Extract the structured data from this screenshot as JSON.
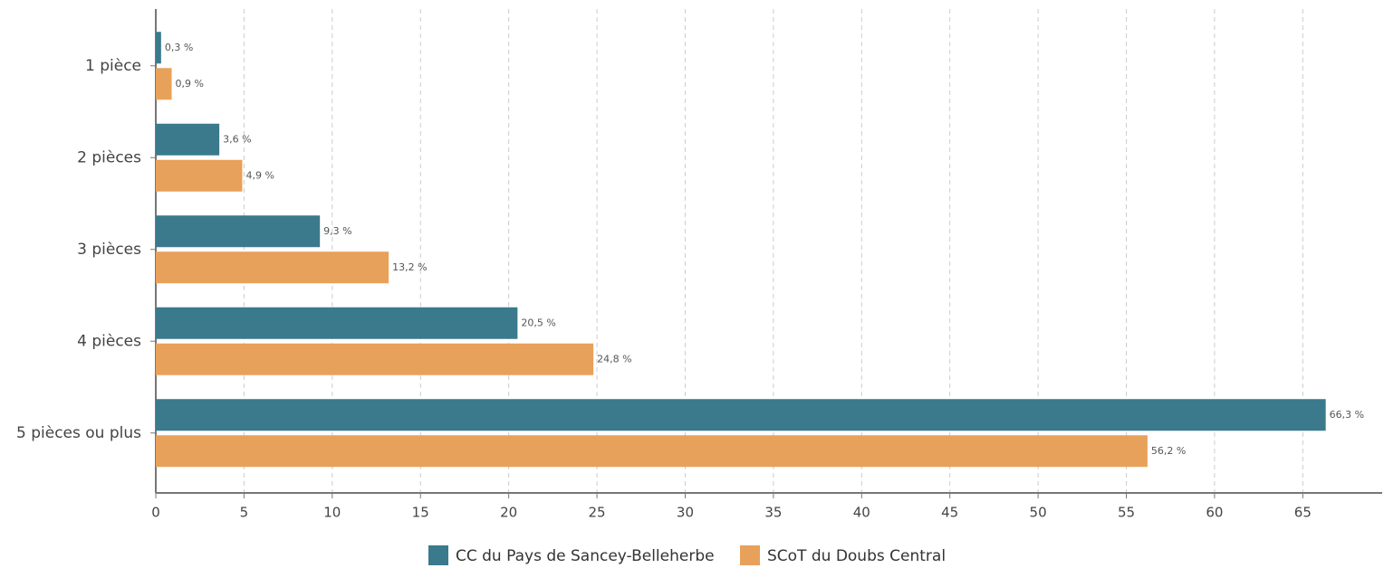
{
  "chart_data": {
    "type": "bar",
    "orientation": "horizontal",
    "categories": [
      "1 pièce",
      "2 pièces",
      "3 pièces",
      "4 pièces",
      "5 pièces ou plus"
    ],
    "series": [
      {
        "name": "CC du Pays de Sancey-Belleherbe",
        "color": "#3a7a8c",
        "values": [
          0.3,
          3.6,
          9.3,
          20.5,
          66.3
        ],
        "value_labels": [
          "0,3 %",
          "3,6 %",
          "9,3 %",
          "20,5 %",
          "66,3 %"
        ]
      },
      {
        "name": "SCoT du Doubs Central",
        "color": "#e8a15a",
        "values": [
          0.9,
          4.9,
          13.2,
          24.8,
          56.2
        ],
        "value_labels": [
          "0,9 %",
          "4,9 %",
          "13,2 %",
          "24,8 %",
          "56,2 %"
        ]
      }
    ],
    "xlim": [
      0,
      69.5
    ],
    "xticks": [
      0,
      5,
      10,
      15,
      20,
      25,
      30,
      35,
      40,
      45,
      50,
      55,
      60,
      65
    ],
    "grid": true,
    "legend": "bottom"
  }
}
